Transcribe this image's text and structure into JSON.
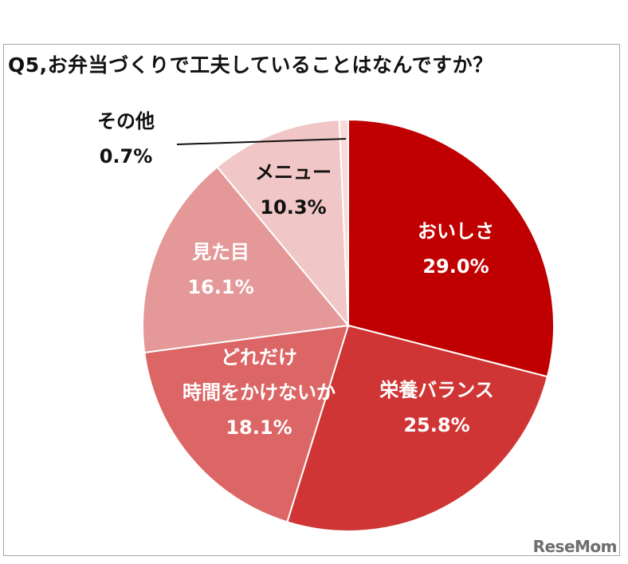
{
  "title": "Q5,お弁当づくりで工夫していることはなんですか？",
  "watermark": "ReseMom",
  "chart_data": {
    "type": "pie",
    "title": "Q5,お弁当づくりで工夫していることはなんですか？",
    "start_angle_deg": 0,
    "direction": "clockwise",
    "slices": [
      {
        "label": "おいしさ",
        "value": 29.0,
        "value_label": "29.0%",
        "color": "#c00000",
        "text_color": "#ffffff"
      },
      {
        "label": "栄養バランス",
        "value": 25.8,
        "value_label": "25.8%",
        "color": "#d03535",
        "text_color": "#ffffff"
      },
      {
        "label": "どれだけ\n時間をかけないか",
        "value": 18.1,
        "value_label": "18.1%",
        "color": "#dc6565",
        "text_color": "#ffffff"
      },
      {
        "label": "見た目",
        "value": 16.1,
        "value_label": "16.1%",
        "color": "#e49898",
        "text_color": "#ffffff"
      },
      {
        "label": "メニュー",
        "value": 10.3,
        "value_label": "10.3%",
        "color": "#f0c6c6",
        "text_color": "#111111"
      },
      {
        "label": "その他",
        "value": 0.7,
        "value_label": "0.7%",
        "color": "#f7dada",
        "text_color": "#111111"
      }
    ]
  }
}
